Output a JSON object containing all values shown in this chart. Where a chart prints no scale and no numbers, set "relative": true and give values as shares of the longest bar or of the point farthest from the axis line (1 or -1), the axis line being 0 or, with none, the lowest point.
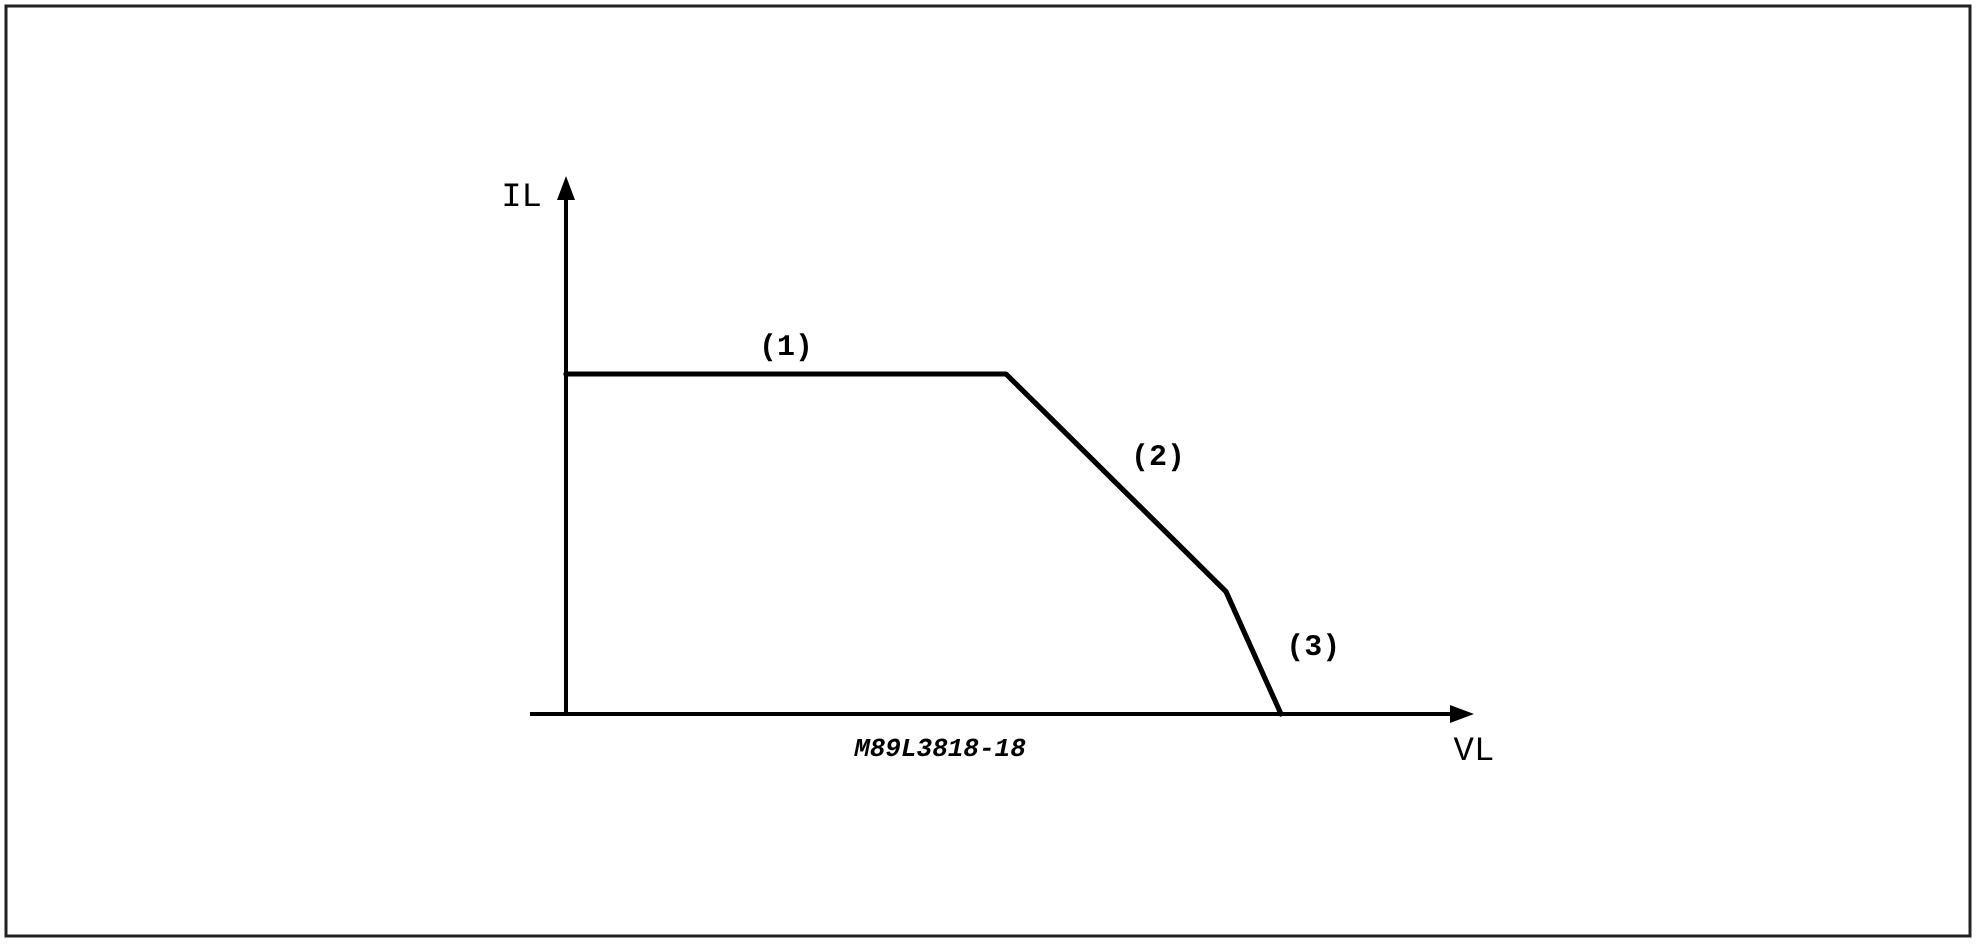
{
  "chart_data": {
    "type": "line",
    "relative": true,
    "xlabel": "VL",
    "ylabel": "IL",
    "categories": [
      null,
      null,
      null,
      null,
      null,
      null,
      null,
      null,
      null,
      null,
      null,
      null,
      null,
      null,
      null,
      null,
      null
    ],
    "series": [
      {
        "color": "#000000",
        "values": [
          1,
          1,
          1,
          1,
          1,
          1,
          1,
          1,
          1,
          0.84,
          0.68,
          0.52,
          0.36,
          0,
          null,
          null,
          null
        ]
      }
    ],
    "line_style": "solid",
    "annotations": [
      "(1)",
      "(2)",
      "(3)",
      "M89L3818-18"
    ]
  }
}
